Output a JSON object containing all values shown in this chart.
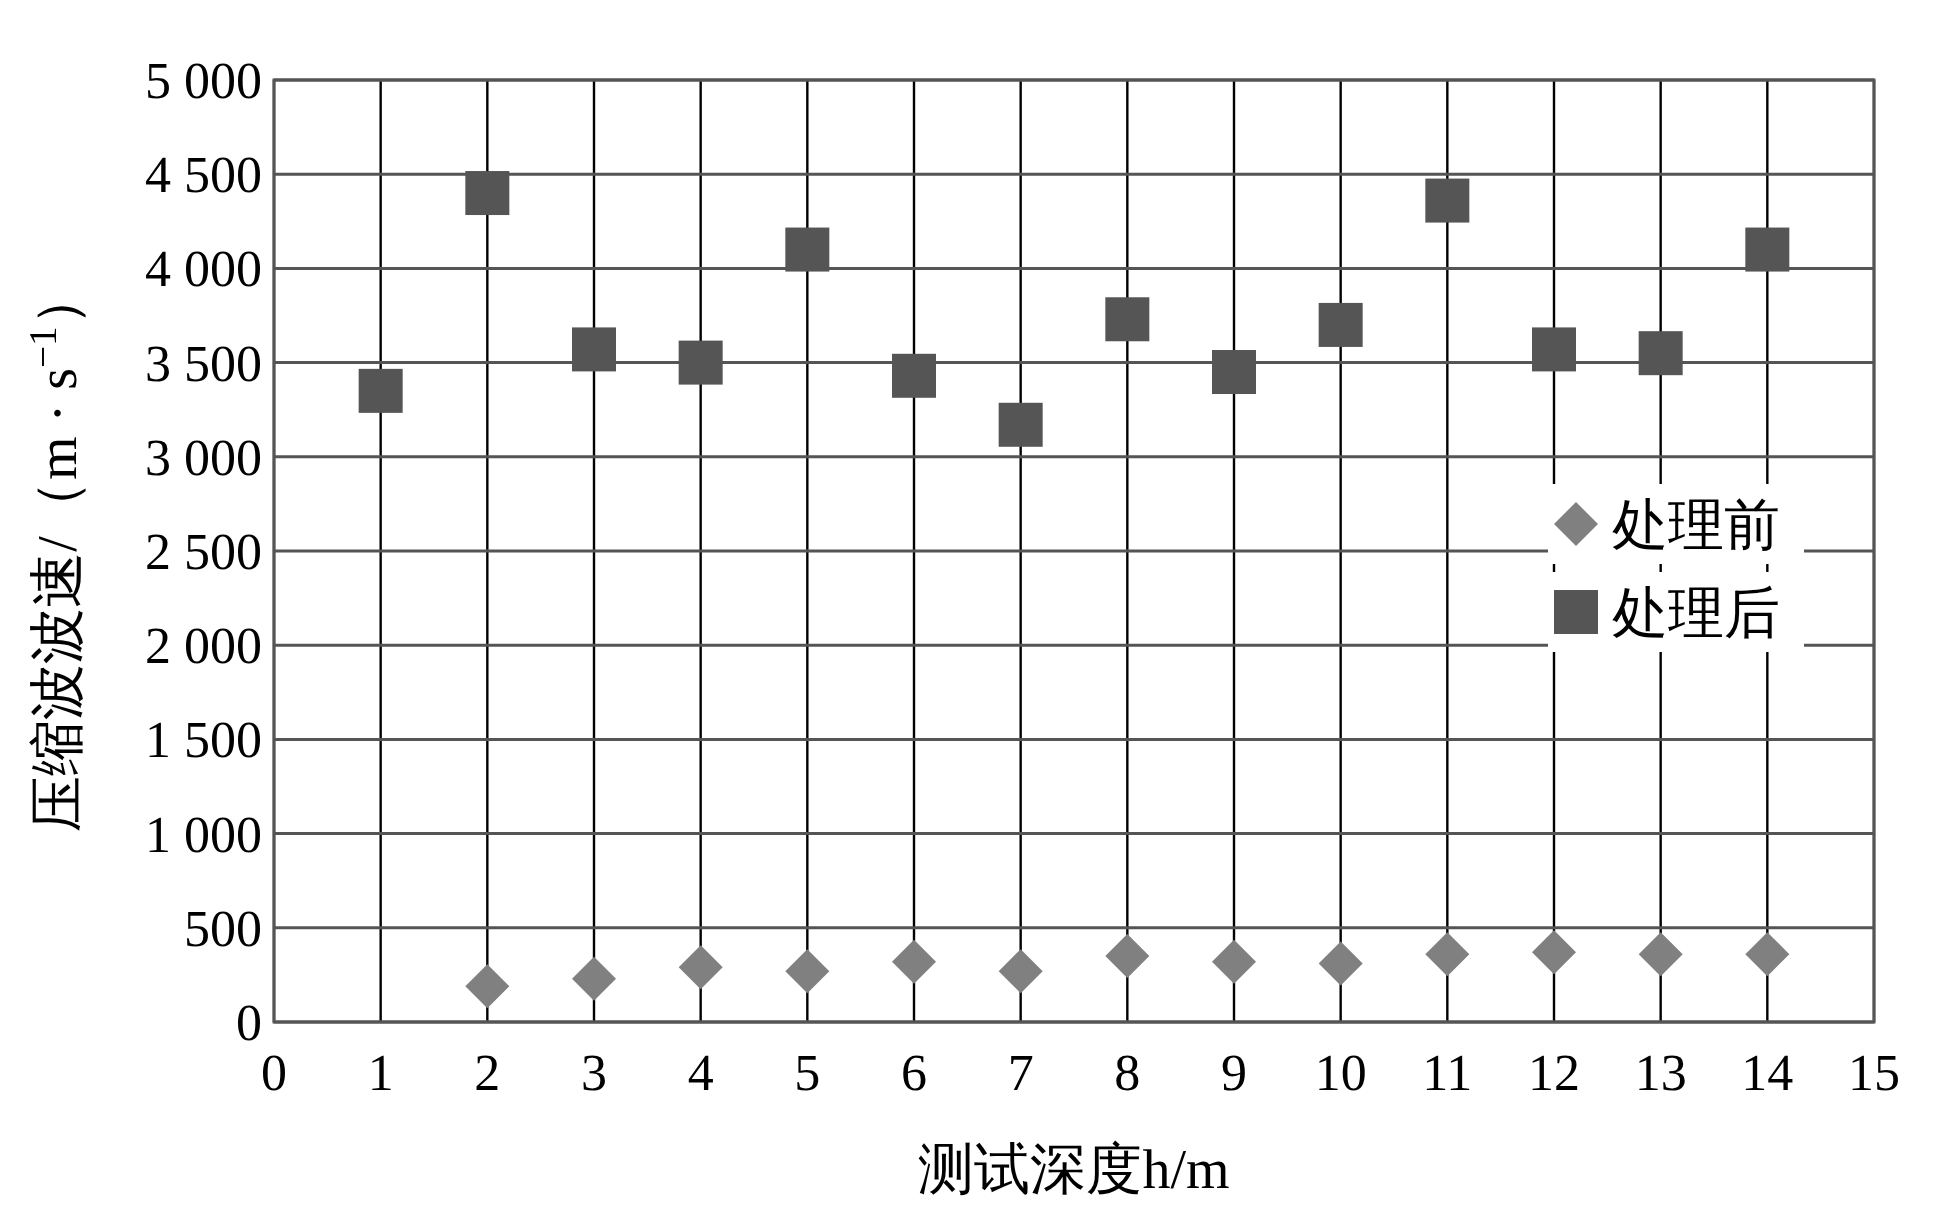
{
  "chart_data": {
    "type": "scatter",
    "xlabel": "测试深度h/m",
    "ylabel": "压缩波波速/（m · s$^{−1}$）",
    "x": [
      1,
      2,
      3,
      4,
      5,
      6,
      7,
      8,
      9,
      10,
      11,
      12,
      13,
      14
    ],
    "series": [
      {
        "name": "处理前",
        "color": "#808080",
        "marker": "diamond",
        "values": [
          null,
          190,
          230,
          290,
          270,
          320,
          270,
          350,
          320,
          310,
          360,
          370,
          360,
          360
        ]
      },
      {
        "name": "处理后",
        "color": "#555555",
        "marker": "square",
        "values": [
          3350,
          4400,
          3570,
          3500,
          4100,
          3430,
          3170,
          3730,
          3450,
          3700,
          4360,
          3570,
          3550,
          4100
        ]
      }
    ],
    "xlim": [
      0,
      15
    ],
    "xticks": [
      0,
      1,
      2,
      3,
      4,
      5,
      6,
      7,
      8,
      9,
      10,
      11,
      12,
      13,
      14,
      15
    ],
    "ylim": [
      0,
      5000
    ],
    "yticks": [
      0,
      500,
      {
        "value": 1000,
        "label": "1 000"
      },
      {
        "value": 1500,
        "label": "1 500"
      },
      {
        "value": 2000,
        "label": "2 000"
      },
      {
        "value": 2500,
        "label": "2 500"
      },
      {
        "value": 3000,
        "label": "3 000"
      },
      {
        "value": 3500,
        "label": "3 500"
      },
      {
        "value": 4000,
        "label": "4 000"
      },
      {
        "value": 4500,
        "label": "4 500"
      },
      {
        "value": 5000,
        "label": "5 000"
      }
    ],
    "grid": true,
    "legend": "right"
  }
}
